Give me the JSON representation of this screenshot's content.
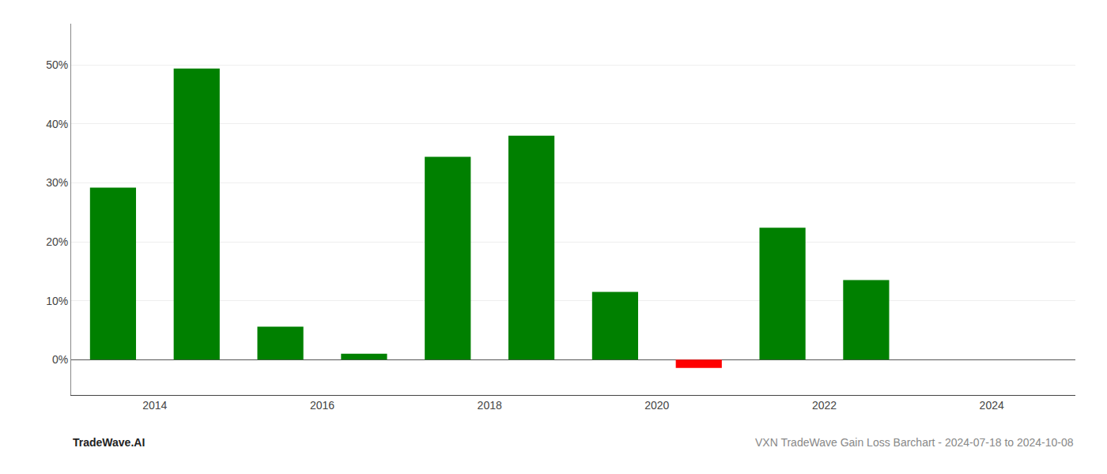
{
  "chart_data": {
    "type": "bar",
    "x": [
      2013.5,
      2014.5,
      2015.5,
      2016.5,
      2017.5,
      2018.5,
      2019.5,
      2020.5,
      2021.5,
      2022.5
    ],
    "values": [
      0.292,
      0.494,
      0.056,
      0.01,
      0.344,
      0.38,
      0.115,
      -0.014,
      0.224,
      0.135
    ],
    "colors": [
      "#008000",
      "#008000",
      "#008000",
      "#008000",
      "#008000",
      "#008000",
      "#008000",
      "#ff0000",
      "#008000",
      "#008000"
    ],
    "xlim": [
      2013.0,
      2025.0
    ],
    "ylim": [
      -0.06,
      0.57
    ],
    "xticks": [
      2014,
      2016,
      2018,
      2020,
      2022,
      2024
    ],
    "yticks": [
      {
        "value": 0.0,
        "label": "0%"
      },
      {
        "value": 0.1,
        "label": "10%"
      },
      {
        "value": 0.2,
        "label": "20%"
      },
      {
        "value": 0.3,
        "label": "30%"
      },
      {
        "value": 0.4,
        "label": "40%"
      },
      {
        "value": 0.5,
        "label": "50%"
      }
    ],
    "grid": true,
    "annotations": [
      "TradeWave.AI",
      "VXN TradeWave Gain Loss Barchart - 2024-07-18 to 2024-10-08"
    ]
  }
}
